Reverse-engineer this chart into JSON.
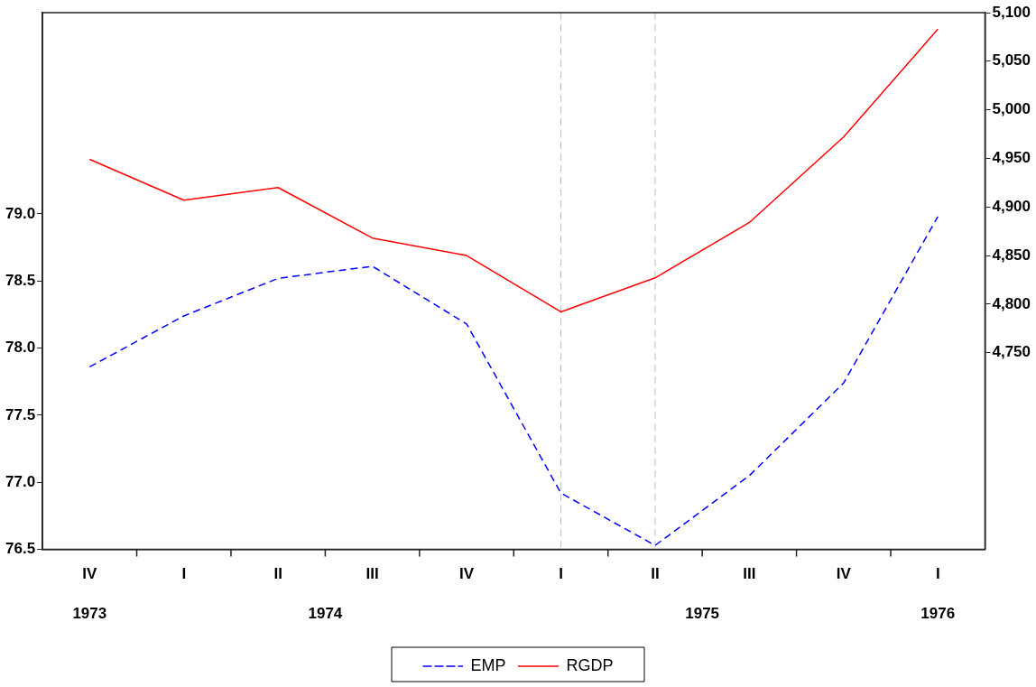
{
  "chart_data": {
    "type": "line",
    "categories": [
      "IV",
      "I",
      "II",
      "III",
      "IV",
      "I",
      "II",
      "III",
      "IV",
      "I"
    ],
    "series": [
      {
        "name": "EMP",
        "color": "#0000ff",
        "line_style": "dashed",
        "values": [
          77.86,
          78.24,
          78.52,
          78.61,
          78.18,
          76.92,
          76.53,
          77.05,
          77.74,
          78.98
        ]
      },
      {
        "name": "RGDP",
        "color": "#ff0000",
        "line_style": "solid",
        "axis": "y2",
        "values": [
          4949,
          4907,
          4920,
          4868,
          4850,
          4792,
          4827,
          4884,
          4972,
          5083
        ]
      }
    ],
    "ylim": [
      76.5,
      80.5
    ],
    "yticks": [
      76.5,
      {
        "value": 77,
        "label": "77.0"
      },
      77.5,
      {
        "value": 78,
        "label": "78.0"
      },
      78.5,
      {
        "value": 79,
        "label": "79.0"
      }
    ],
    "y2lim": [
      4547.5,
      5100
    ],
    "y2ticks": [
      {
        "value": 4750,
        "label": "4,750"
      },
      {
        "value": 4800,
        "label": "4,800"
      },
      {
        "value": 4850,
        "label": "4,850"
      },
      {
        "value": 4900,
        "label": "4,900"
      },
      {
        "value": 4950,
        "label": "4,950"
      },
      {
        "value": 5000,
        "label": "5,000"
      },
      {
        "value": 5050,
        "label": "5,050"
      },
      {
        "value": 5100,
        "label": "5,100"
      }
    ],
    "annotations": [
      "1973",
      "1974",
      "1975",
      "1976"
    ],
    "legend": "bottom",
    "marker": "none"
  }
}
